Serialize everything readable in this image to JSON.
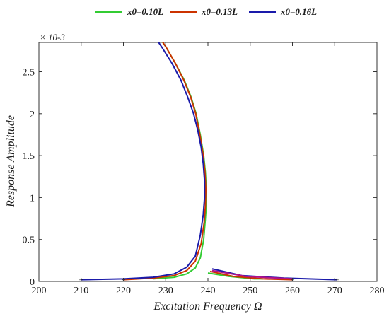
{
  "chart_data": {
    "type": "line",
    "title": "",
    "xlabel": "Excitation Frequency Ω",
    "ylabel": "Response Amplitude",
    "y_scale_label": "× 10-3",
    "xlim": [
      200,
      280
    ],
    "ylim": [
      0,
      0.00285
    ],
    "x_ticks": [
      200,
      210,
      220,
      230,
      240,
      250,
      260,
      270,
      280
    ],
    "x_tick_labels": [
      "200",
      "210",
      "220",
      "230",
      "240",
      "250",
      "260",
      "270",
      "280"
    ],
    "y_ticks": [
      0,
      0.0005,
      0.001,
      0.0015,
      0.002,
      0.0025
    ],
    "y_tick_labels": [
      "0",
      "0.5",
      "1",
      "1.5",
      "2",
      "2.5"
    ],
    "grid": false,
    "legend_position": "top-center",
    "series": [
      {
        "name": "x0=0.10L",
        "color": "#33cc33",
        "x": [
          227,
          232,
          235,
          237,
          238.2,
          239.0,
          239.4,
          239.6,
          239.6,
          239.4,
          239.0,
          238.2,
          237.2,
          236,
          234.4,
          232.3,
          230,
          227.2,
          225.3
        ],
        "y": [
          3e-05,
          5e-05,
          9e-05,
          0.00016,
          0.00028,
          0.0005,
          0.00075,
          0.0009,
          0.0011,
          0.0013,
          0.0015,
          0.00175,
          0.002,
          0.0022,
          0.0024,
          0.0026,
          0.0028,
          0.003,
          0.0031
        ]
      },
      {
        "name": "x0=0.13L",
        "color": "#cc3300",
        "x": [
          220,
          227,
          232,
          235,
          237,
          238.4,
          239.1,
          239.4,
          239.5,
          239.3,
          238.9,
          238.1,
          237.1,
          235.9,
          234.3,
          232.3,
          230,
          227.3,
          225.5
        ],
        "y": [
          2e-05,
          4e-05,
          7e-05,
          0.00013,
          0.00024,
          0.00045,
          0.0007,
          0.0009,
          0.0011,
          0.0013,
          0.0015,
          0.00175,
          0.002,
          0.0022,
          0.0024,
          0.0026,
          0.0028,
          0.003,
          0.0031
        ]
      },
      {
        "name": "x0=0.16L",
        "color": "#1a1aaa",
        "x": [
          210,
          220,
          227,
          232,
          235,
          237,
          238.2,
          238.9,
          239.2,
          239.2,
          238.9,
          238.4,
          237.6,
          236.6,
          235.2,
          233.6,
          231.5,
          229,
          226.3,
          223.2
        ],
        "y": [
          2e-05,
          3e-05,
          5e-05,
          9e-05,
          0.00017,
          0.0003,
          0.00055,
          0.0008,
          0.001,
          0.0012,
          0.0014,
          0.0016,
          0.0018,
          0.002,
          0.0022,
          0.0024,
          0.0026,
          0.0028,
          0.003,
          0.0032
        ]
      }
    ],
    "tail_series": [
      {
        "color": "#33cc33",
        "x": [
          240,
          245,
          251,
          253
        ],
        "y": [
          0.0001,
          6e-05,
          3e-05,
          3e-05
        ]
      },
      {
        "color": "#cc3300",
        "x": [
          240.5,
          246,
          253,
          260
        ],
        "y": [
          0.00012,
          6e-05,
          3e-05,
          2e-05
        ]
      },
      {
        "color": "#1a1aaa",
        "x": [
          241,
          248,
          258,
          270.5
        ],
        "y": [
          0.00015,
          7e-05,
          4e-05,
          2e-05
        ]
      },
      {
        "color": "#b0108a",
        "x": [
          241,
          249,
          260
        ],
        "y": [
          0.00013,
          6e-05,
          3e-05
        ]
      }
    ]
  }
}
